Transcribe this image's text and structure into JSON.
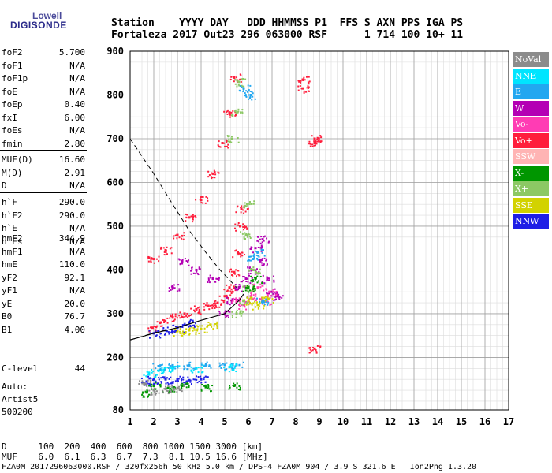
{
  "logo": {
    "line1": "Lowell",
    "line2": "DIGISONDE"
  },
  "header": {
    "line1": "Station    YYYY DAY   DDD HHMMSS P1  FFS S AXN PPS IGA PS",
    "line2": "Fortaleza 2017 Out23 296 063000 RSF      1 714 100 10+ 11"
  },
  "params_group1": [
    {
      "k": "foF2",
      "v": "5.700"
    },
    {
      "k": "foF1",
      "v": "N/A"
    },
    {
      "k": "foF1p",
      "v": "N/A"
    },
    {
      "k": "foE",
      "v": "N/A"
    },
    {
      "k": "foEp",
      "v": "0.40"
    },
    {
      "k": "fxI",
      "v": "6.00"
    },
    {
      "k": "foEs",
      "v": "N/A"
    },
    {
      "k": "fmin",
      "v": "2.80"
    }
  ],
  "params_group2": [
    {
      "k": "MUF(D)",
      "v": "16.60"
    },
    {
      "k": "M(D)",
      "v": "2.91"
    },
    {
      "k": "D",
      "v": "N/A"
    }
  ],
  "params_group3": [
    {
      "k": "h`F",
      "v": "290.0"
    },
    {
      "k": "h`F2",
      "v": "290.0"
    },
    {
      "k": "h`E",
      "v": "N/A"
    },
    {
      "k": "h`Es",
      "v": "N/A"
    }
  ],
  "params_group4": [
    {
      "k": "hmF2",
      "v": "344.9"
    },
    {
      "k": "hmF1",
      "v": "N/A"
    },
    {
      "k": "hmE",
      "v": "110.0"
    },
    {
      "k": "yF2",
      "v": "92.1"
    },
    {
      "k": "yF1",
      "v": "N/A"
    },
    {
      "k": "yE",
      "v": "20.0"
    },
    {
      "k": "B0",
      "v": "76.7"
    },
    {
      "k": "B1",
      "v": "4.00"
    }
  ],
  "params_group5": [
    {
      "k": "C-level",
      "v": "44"
    }
  ],
  "auto": {
    "l1": "Auto:",
    "l2": "Artist5",
    "l3": "500200"
  },
  "legend": [
    {
      "label": "NoVal",
      "color": "#8c8c8c"
    },
    {
      "label": "NNE",
      "color": "#00e5ff"
    },
    {
      "label": "E",
      "color": "#22a7f0"
    },
    {
      "label": "W",
      "color": "#b400b4"
    },
    {
      "label": "Vo-",
      "color": "#ff3cb4"
    },
    {
      "label": "Vo+",
      "color": "#ff1e3c"
    },
    {
      "label": "SSW",
      "color": "#ffb4b4"
    },
    {
      "label": "X-",
      "color": "#009600"
    },
    {
      "label": "X+",
      "color": "#8cc864"
    },
    {
      "label": "SSE",
      "color": "#d2d200"
    },
    {
      "label": "NNW",
      "color": "#1e1ee6"
    }
  ],
  "bottom": {
    "line1": "D      100  200  400  600  800 1000 1500 3000 [km]",
    "line2": "MUF    6.0  6.1  6.3  6.7  7.3  8.1 10.5 16.6 [MHz]",
    "line3": "FZA0M_2017296063000.RSF / 320fx256h 50 kHz 5.0 km / DPS-4 FZA0M 904 / 3.9 S 321.6 E   Ion2Png 1.3.20"
  },
  "chart_data": {
    "type": "scatter",
    "xlim": [
      1,
      17
    ],
    "ylim": [
      80,
      900
    ],
    "x_ticks": [
      1,
      2,
      3,
      4,
      5,
      6,
      7,
      8,
      9,
      10,
      11,
      12,
      13,
      14,
      15,
      16,
      17
    ],
    "y_ticks": [
      80,
      200,
      300,
      400,
      500,
      600,
      700,
      800,
      900
    ],
    "y_minor_step": 25,
    "x_minor_step": 0.25,
    "grid": true,
    "legend_position": "right",
    "series": [
      {
        "color": "#ff1e3c",
        "points": [
          [
            1.95,
            268
          ],
          [
            2.3,
            280
          ],
          [
            2.8,
            292
          ],
          [
            3.3,
            300
          ],
          [
            3.8,
            310
          ],
          [
            4.3,
            318
          ],
          [
            4.7,
            325
          ],
          [
            5.0,
            340
          ],
          [
            5.2,
            360
          ],
          [
            5.4,
            395
          ],
          [
            5.55,
            440
          ],
          [
            5.65,
            500
          ],
          [
            5.7,
            540
          ]
        ]
      },
      {
        "color": "#ff1e3c",
        "points": [
          [
            2.0,
            425
          ],
          [
            2.5,
            445
          ],
          [
            3.0,
            480
          ],
          [
            3.5,
            520
          ],
          [
            4.0,
            560
          ],
          [
            4.5,
            620
          ],
          [
            4.9,
            690
          ],
          [
            5.2,
            760
          ],
          [
            5.4,
            840
          ]
        ]
      },
      {
        "color": "#ff1e3c",
        "points": [
          [
            8.3,
            835
          ],
          [
            8.3,
            815
          ],
          [
            8.8,
            700
          ],
          [
            8.8,
            690
          ],
          [
            8.8,
            220
          ]
        ]
      },
      {
        "color": "#b400b4",
        "points": [
          [
            5.0,
            300
          ],
          [
            5.3,
            330
          ],
          [
            5.6,
            360
          ],
          [
            5.9,
            380
          ],
          [
            6.2,
            400
          ],
          [
            6.5,
            420
          ],
          [
            6.8,
            380
          ],
          [
            7.0,
            350
          ],
          [
            7.2,
            340
          ],
          [
            4.5,
            380
          ],
          [
            3.8,
            400
          ],
          [
            3.2,
            420
          ],
          [
            2.8,
            360
          ],
          [
            6.3,
            450
          ],
          [
            6.6,
            470
          ]
        ]
      },
      {
        "color": "#ff3cb4",
        "points": [
          [
            5.8,
            320
          ],
          [
            6.1,
            340
          ],
          [
            6.4,
            360
          ],
          [
            6.7,
            330
          ],
          [
            6.9,
            350
          ],
          [
            5.5,
            330
          ]
        ]
      },
      {
        "color": "#8cc864",
        "points": [
          [
            5.5,
            300
          ],
          [
            5.8,
            330
          ],
          [
            6.0,
            360
          ],
          [
            6.2,
            400
          ],
          [
            5.9,
            480
          ],
          [
            5.95,
            550
          ],
          [
            5.3,
            700
          ],
          [
            5.5,
            760
          ],
          [
            5.6,
            830
          ]
        ]
      },
      {
        "color": "#d2d200",
        "points": [
          [
            3.0,
            260
          ],
          [
            3.5,
            262
          ],
          [
            4.0,
            265
          ],
          [
            4.4,
            275
          ],
          [
            6.0,
            330
          ],
          [
            6.4,
            320
          ],
          [
            6.8,
            335
          ]
        ]
      },
      {
        "color": "#22a7f0",
        "points": [
          [
            2.2,
            180
          ],
          [
            2.8,
            182
          ],
          [
            3.5,
            182
          ],
          [
            4.2,
            182
          ],
          [
            5.0,
            183
          ],
          [
            5.5,
            183
          ],
          [
            6.6,
            330
          ],
          [
            6.2,
            425
          ],
          [
            6.4,
            440
          ],
          [
            5.8,
            815
          ],
          [
            6.1,
            800
          ]
        ]
      },
      {
        "color": "#1e1ee6",
        "points": [
          [
            1.7,
            145
          ],
          [
            2.0,
            150
          ],
          [
            2.5,
            150
          ],
          [
            3.0,
            150
          ],
          [
            3.5,
            148
          ],
          [
            4.0,
            150
          ],
          [
            2.0,
            255
          ],
          [
            2.5,
            262
          ],
          [
            3.0,
            268
          ],
          [
            3.5,
            280
          ]
        ]
      },
      {
        "color": "#009600",
        "points": [
          [
            1.7,
            120
          ],
          [
            2.0,
            135
          ],
          [
            2.6,
            130
          ],
          [
            3.2,
            135
          ],
          [
            4.2,
            132
          ],
          [
            5.4,
            135
          ],
          [
            6.0,
            360
          ],
          [
            6.3,
            380
          ]
        ]
      },
      {
        "color": "#00e5ff",
        "points": [
          [
            1.8,
            165
          ],
          [
            2.2,
            170
          ],
          [
            2.8,
            175
          ],
          [
            3.8,
            175
          ],
          [
            5.2,
            178
          ]
        ]
      },
      {
        "color": "#8c8c8c",
        "points": [
          [
            2.0,
            125
          ],
          [
            2.5,
            128
          ],
          [
            3.0,
            130
          ],
          [
            1.6,
            140
          ]
        ]
      }
    ],
    "profile_curve": [
      [
        1.0,
        240
      ],
      [
        2.0,
        255
      ],
      [
        3.0,
        268
      ],
      [
        4.0,
        285
      ],
      [
        5.0,
        300
      ],
      [
        5.6,
        330
      ],
      [
        5.8,
        345
      ]
    ],
    "dashed_curve_upper": [
      [
        1.0,
        700
      ],
      [
        2.0,
        620
      ],
      [
        2.8,
        550
      ],
      [
        3.5,
        490
      ],
      [
        4.2,
        440
      ],
      [
        4.8,
        400
      ],
      [
        5.5,
        360
      ]
    ],
    "dashed_curve_lower": [
      [
        1.0,
        240
      ],
      [
        1.5,
        248
      ],
      [
        2.0,
        256
      ],
      [
        2.5,
        262
      ]
    ]
  }
}
